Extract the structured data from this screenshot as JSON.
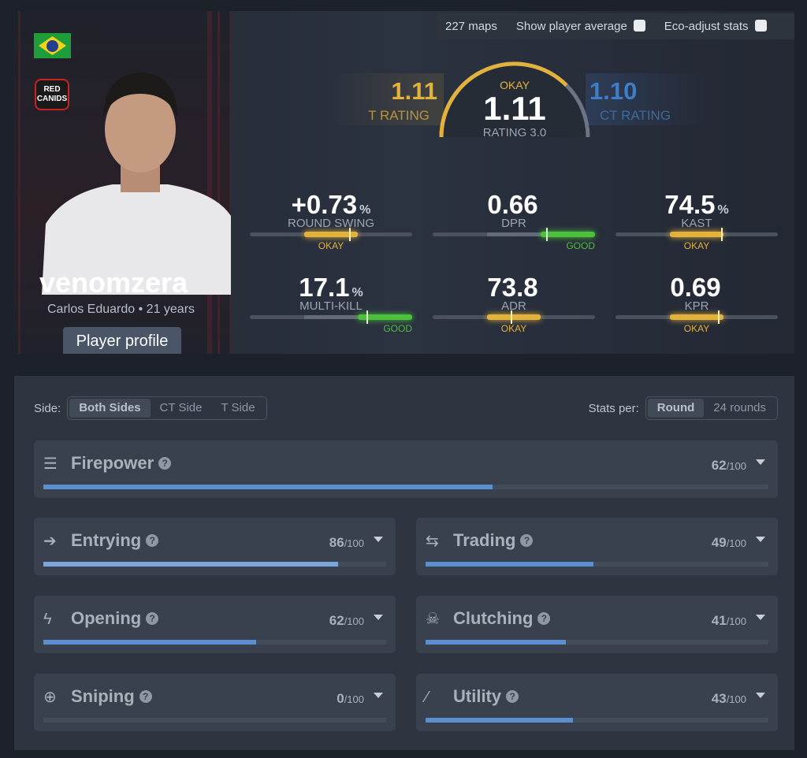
{
  "player": {
    "nickname": "venomzera",
    "subtitle": "Carlos Eduardo • 21 years",
    "profile_button": "Player profile",
    "team_logo_text": "RED CANIDS",
    "country": "Brazil"
  },
  "filters": {
    "maps": "227 maps",
    "show_avg": "Show player average",
    "show_avg_checked": false,
    "eco": "Eco-adjust stats",
    "eco_checked": false
  },
  "rating": {
    "t_value": "1.11",
    "t_label": "T RATING",
    "ct_value": "1.10",
    "ct_label": "CT RATING",
    "value": "1.11",
    "grade": "OKAY",
    "label": "RATING 3.0",
    "gauge_fraction": 0.75
  },
  "colors": {
    "okay": "#e3b23c",
    "good": "#4cc13b",
    "t": "#e3b23c",
    "ct": "#3f7dc8",
    "bar": "#5b8fcf"
  },
  "stats": [
    {
      "value": "+0.73",
      "unit": "%",
      "label": "ROUND SWING",
      "grade": "OKAY",
      "level": 0.61
    },
    {
      "value": "0.66",
      "unit": "",
      "label": "DPR",
      "grade": "GOOD",
      "level": 0.7
    },
    {
      "value": "74.5",
      "unit": "%",
      "label": "KAST",
      "grade": "OKAY",
      "level": 0.65
    },
    {
      "value": "17.1",
      "unit": "%",
      "label": "MULTI-KILL",
      "grade": "GOOD",
      "level": 0.72
    },
    {
      "value": "73.8",
      "unit": "",
      "label": "ADR",
      "grade": "OKAY",
      "level": 0.48
    },
    {
      "value": "0.69",
      "unit": "",
      "label": "KPR",
      "grade": "OKAY",
      "level": 0.63
    }
  ],
  "side": {
    "label": "Side:",
    "options": [
      "Both Sides",
      "CT Side",
      "T Side"
    ],
    "selected": "Both Sides"
  },
  "per": {
    "label": "Stats per:",
    "options": [
      "Round",
      "24 rounds"
    ],
    "selected": "Round"
  },
  "categories": [
    {
      "name": "Firepower",
      "score": 62,
      "icon": "firepower-icon",
      "glyph": "☰"
    },
    {
      "name": "Entrying",
      "score": 86,
      "icon": "entry-icon",
      "glyph": "➔"
    },
    {
      "name": "Trading",
      "score": 49,
      "icon": "trade-arrows-icon",
      "glyph": "⇆"
    },
    {
      "name": "Opening",
      "score": 62,
      "icon": "lightning-icon",
      "glyph": "ϟ"
    },
    {
      "name": "Clutching",
      "score": 41,
      "icon": "skull-icon",
      "glyph": "☠"
    },
    {
      "name": "Sniping",
      "score": 0,
      "icon": "crosshair-icon",
      "glyph": "⊕"
    },
    {
      "name": "Utility",
      "score": 43,
      "icon": "grenade-icon",
      "glyph": "⁄"
    }
  ],
  "score_max": "/100"
}
